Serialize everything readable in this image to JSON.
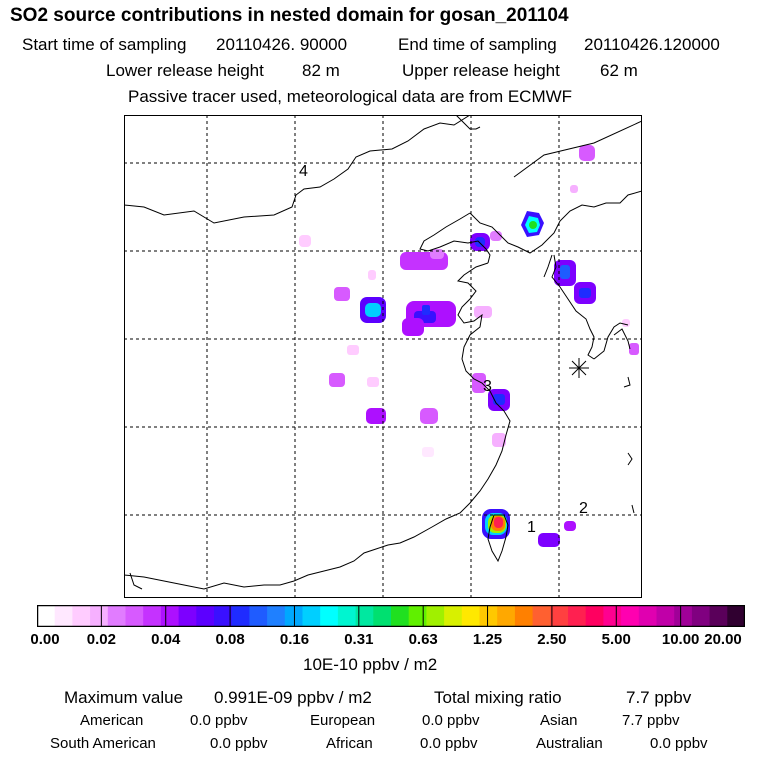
{
  "title": "SO2 source contributions in nested domain for gosan_201104",
  "sampling": {
    "start_label": "Start time of sampling",
    "start_value": "20110426. 90000",
    "end_label": "End time of sampling",
    "end_value": "20110426.120000"
  },
  "release": {
    "lower_label": "Lower release height",
    "lower_value": "82 m",
    "upper_label": "Upper release height",
    "upper_value": "62 m"
  },
  "note": "Passive tracer used, meteorological data are from ECMWF",
  "map": {
    "markers": [
      "4",
      "3",
      "1",
      "2"
    ],
    "receptor_icon": "asterisk-icon"
  },
  "legend": {
    "ticks": [
      "0.00",
      "0.02",
      "0.04",
      "0.08",
      "0.16",
      "0.31",
      "0.63",
      "1.25",
      "2.50",
      "5.00",
      "10.00",
      "20.00"
    ],
    "unit": "10E-10 ppbv / m2",
    "colors": [
      "#ffffff",
      "#ffe8ff",
      "#ffccff",
      "#f6b0ff",
      "#e17cff",
      "#d75aff",
      "#c532ff",
      "#ad10ff",
      "#7d00ff",
      "#5c00ff",
      "#3a10ff",
      "#1f2cff",
      "#1f5cff",
      "#1f80ff",
      "#00a8ff",
      "#00cfff",
      "#00ffff",
      "#00f5d0",
      "#00e8a0",
      "#00e070",
      "#20e020",
      "#60f000",
      "#a0f000",
      "#d8f000",
      "#ffe800",
      "#ffc800",
      "#ffa800",
      "#ff8000",
      "#ff6030",
      "#ff4040",
      "#ff2050",
      "#ff0060",
      "#ff0090",
      "#ff00b0",
      "#e000b0",
      "#c000a8",
      "#a00098",
      "#800080",
      "#5a005a",
      "#300030"
    ]
  },
  "summary": {
    "max_label": "Maximum value",
    "max_value": "0.991E-09 ppbv / m2",
    "total_label": "Total mixing ratio",
    "total_value": "7.7 ppbv",
    "regions": [
      {
        "name": "American",
        "value": "0.0 ppbv"
      },
      {
        "name": "European",
        "value": "0.0 ppbv"
      },
      {
        "name": "Asian",
        "value": "7.7 ppbv"
      },
      {
        "name": "South American",
        "value": "0.0 ppbv"
      },
      {
        "name": "African",
        "value": "0.0 ppbv"
      },
      {
        "name": "Australian",
        "value": "0.0 ppbv"
      }
    ]
  }
}
